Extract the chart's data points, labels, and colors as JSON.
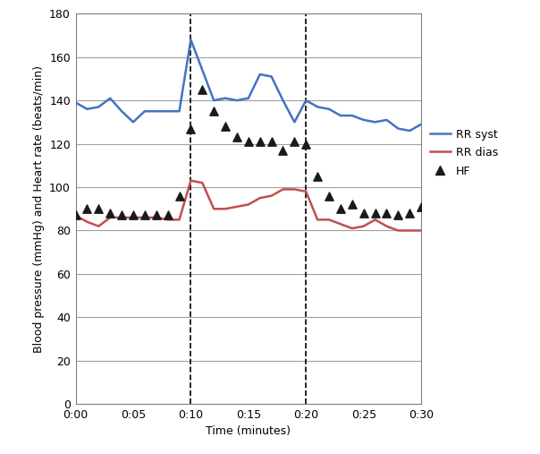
{
  "xlabel": "Time (minutes)",
  "ylabel": "Blood pressure (mmHg) and Heart rate (beats/min)",
  "xlim": [
    0,
    30
  ],
  "ylim": [
    0,
    180
  ],
  "yticks": [
    0,
    20,
    40,
    60,
    80,
    100,
    120,
    140,
    160,
    180
  ],
  "xtick_labels": [
    "0:00",
    "0:05",
    "0:10",
    "0:15",
    "0:20",
    "0:25",
    "0:30"
  ],
  "xtick_positions": [
    0,
    5,
    10,
    15,
    20,
    25,
    30
  ],
  "vlines": [
    10,
    20
  ],
  "rr_syst_x": [
    0,
    1,
    2,
    3,
    4,
    5,
    6,
    7,
    8,
    9,
    10,
    11,
    12,
    13,
    14,
    15,
    16,
    17,
    18,
    19,
    20,
    21,
    22,
    23,
    24,
    25,
    26,
    27,
    28,
    29,
    30
  ],
  "rr_syst_y": [
    139,
    136,
    137,
    141,
    135,
    130,
    135,
    135,
    135,
    135,
    168,
    154,
    140,
    141,
    140,
    141,
    152,
    151,
    140,
    130,
    140,
    137,
    136,
    133,
    133,
    131,
    130,
    131,
    127,
    126,
    129
  ],
  "rr_dias_x": [
    0,
    1,
    2,
    3,
    4,
    5,
    6,
    7,
    8,
    9,
    10,
    11,
    12,
    13,
    14,
    15,
    16,
    17,
    18,
    19,
    20,
    21,
    22,
    23,
    24,
    25,
    26,
    27,
    28,
    29,
    30
  ],
  "rr_dias_y": [
    87,
    84,
    82,
    86,
    86,
    86,
    86,
    86,
    85,
    85,
    103,
    102,
    90,
    90,
    91,
    92,
    95,
    96,
    99,
    99,
    98,
    85,
    85,
    83,
    81,
    82,
    85,
    82,
    80,
    80,
    80
  ],
  "hf_x": [
    0,
    1,
    2,
    3,
    4,
    5,
    6,
    7,
    8,
    9,
    10,
    11,
    12,
    13,
    14,
    15,
    16,
    17,
    18,
    19,
    20,
    21,
    22,
    23,
    24,
    25,
    26,
    27,
    28,
    29,
    30
  ],
  "hf_y": [
    87,
    90,
    90,
    88,
    87,
    87,
    87,
    87,
    87,
    96,
    127,
    145,
    135,
    128,
    123,
    121,
    121,
    121,
    117,
    121,
    120,
    105,
    96,
    90,
    92,
    88,
    88,
    88,
    87,
    88,
    91
  ],
  "syst_color": "#4472C4",
  "dias_color": "#C0504D",
  "hf_color": "#1a1a1a",
  "line_width": 1.8,
  "background_color": "#ffffff",
  "grid_color": "#a0a0a0",
  "spine_color": "#808080",
  "legend_labels": [
    "RR syst",
    "RR dias",
    "HF"
  ],
  "tick_fontsize": 9,
  "label_fontsize": 9,
  "legend_fontsize": 9
}
